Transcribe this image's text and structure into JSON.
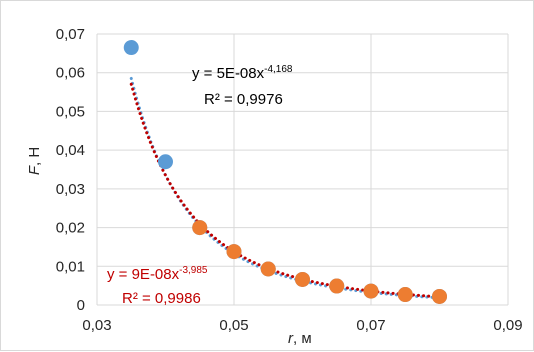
{
  "chart_data": {
    "type": "scatter",
    "title": "",
    "xlabel_var": "r",
    "xlabel_unit": ", м",
    "ylabel_var": "F",
    "ylabel_unit": ", Н",
    "xlim": [
      0.03,
      0.09
    ],
    "ylim": [
      0,
      0.07
    ],
    "x_ticks": [
      0.03,
      0.05,
      0.07,
      0.09
    ],
    "x_tick_labels": [
      "0,03",
      "0,05",
      "0,07",
      "0,09"
    ],
    "y_ticks": [
      0,
      0.01,
      0.02,
      0.03,
      0.04,
      0.05,
      0.06,
      0.07
    ],
    "y_tick_labels": [
      "0",
      "0,01",
      "0,02",
      "0,03",
      "0,04",
      "0,05",
      "0,06",
      "0,07"
    ],
    "grid": true,
    "series": [
      {
        "color": "#5b9bd5",
        "x": [
          0.035,
          0.04,
          0.045,
          0.05,
          0.055,
          0.06,
          0.065,
          0.07,
          0.075,
          0.08
        ],
        "y": [
          0.0665,
          0.037,
          0.02,
          0.0138,
          0.0093,
          0.0066,
          0.0049,
          0.0036,
          0.0027,
          0.0022
        ],
        "trendline": {
          "type": "power",
          "a": 5e-08,
          "b": -4.168,
          "x_range": [
            0.035,
            0.08
          ],
          "equation_base": "y = 5E-08x",
          "equation_exp": "-4,168",
          "r2": "R² = 0,9976",
          "color": "#5b9bd5"
        }
      },
      {
        "color": "#ed7d31",
        "x": [
          0.045,
          0.05,
          0.055,
          0.06,
          0.065,
          0.07,
          0.075,
          0.08
        ],
        "y": [
          0.02,
          0.0138,
          0.0093,
          0.0066,
          0.0049,
          0.0036,
          0.0027,
          0.0022
        ],
        "trendline": {
          "type": "power",
          "a": 9e-08,
          "b": -3.985,
          "x_range": [
            0.035,
            0.08
          ],
          "equation_base": "y = 9E-08x",
          "equation_exp": "-3,985",
          "r2": "R² = 0,9986",
          "color": "#c00000"
        }
      }
    ]
  }
}
